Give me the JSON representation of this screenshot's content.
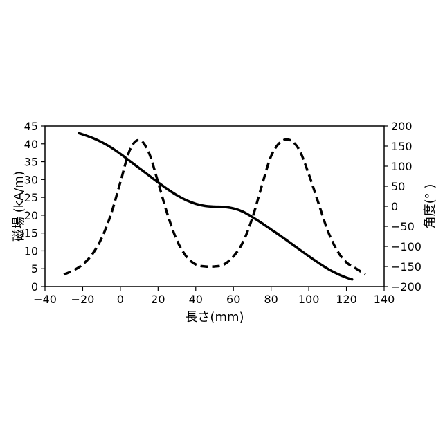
{
  "chart_data": {
    "type": "line",
    "title": "",
    "xlabel": "長さ(mm)",
    "ylabel": "磁場 (kA/m)",
    "y2label": "角度(° )",
    "xlim": [
      -40,
      140
    ],
    "ylim": [
      0,
      45
    ],
    "y2lim": [
      -200,
      200
    ],
    "xticks": [
      -40,
      -20,
      0,
      20,
      40,
      60,
      80,
      100,
      120,
      140
    ],
    "xtick_labels": [
      "−40",
      "−20",
      "0",
      "20",
      "40",
      "60",
      "80",
      "100",
      "120",
      "140"
    ],
    "yticks": [
      0,
      5,
      10,
      15,
      20,
      25,
      30,
      35,
      40,
      45
    ],
    "ytick_labels": [
      "0",
      "5",
      "10",
      "15",
      "20",
      "25",
      "30",
      "35",
      "40",
      "45"
    ],
    "y2ticks": [
      -200,
      -150,
      -100,
      -50,
      0,
      50,
      100,
      150,
      200
    ],
    "y2tick_labels": [
      "−200",
      "−150",
      "−100",
      "−50",
      "0",
      "50",
      "100",
      "150",
      "200"
    ],
    "grid": false,
    "legend": "none",
    "series": [
      {
        "axis": "left",
        "style": "solid",
        "color": "#000000",
        "x": [
          -22,
          -15,
          -10,
          -5,
          0,
          5,
          10,
          15,
          20,
          25,
          30,
          35,
          40,
          45,
          50,
          55,
          60,
          65,
          70,
          75,
          80,
          85,
          90,
          95,
          100,
          105,
          110,
          115,
          120,
          123
        ],
        "y": [
          43,
          41.7,
          40.5,
          39,
          37.2,
          35.2,
          33.2,
          31.2,
          29.2,
          27.3,
          25.6,
          24.2,
          23.2,
          22.6,
          22.4,
          22.3,
          21.9,
          21,
          19.5,
          17.8,
          16,
          14.2,
          12.3,
          10.4,
          8.5,
          6.7,
          5,
          3.6,
          2.5,
          2
        ]
      },
      {
        "axis": "right",
        "style": "dashed",
        "color": "#000000",
        "x": [
          -30,
          -25,
          -20,
          -15,
          -10,
          -5,
          0,
          5,
          10,
          15,
          20,
          25,
          30,
          35,
          40,
          45,
          50,
          55,
          60,
          65,
          70,
          75,
          80,
          85,
          90,
          95,
          100,
          105,
          110,
          115,
          120,
          125,
          130
        ],
        "y": [
          -170,
          -160,
          -145,
          -120,
          -80,
          -20,
          60,
          140,
          165,
          135,
          60,
          -20,
          -85,
          -125,
          -145,
          -150,
          -150,
          -145,
          -125,
          -90,
          -30,
          50,
          125,
          160,
          165,
          140,
          80,
          10,
          -60,
          -110,
          -140,
          -155,
          -170
        ]
      }
    ]
  }
}
